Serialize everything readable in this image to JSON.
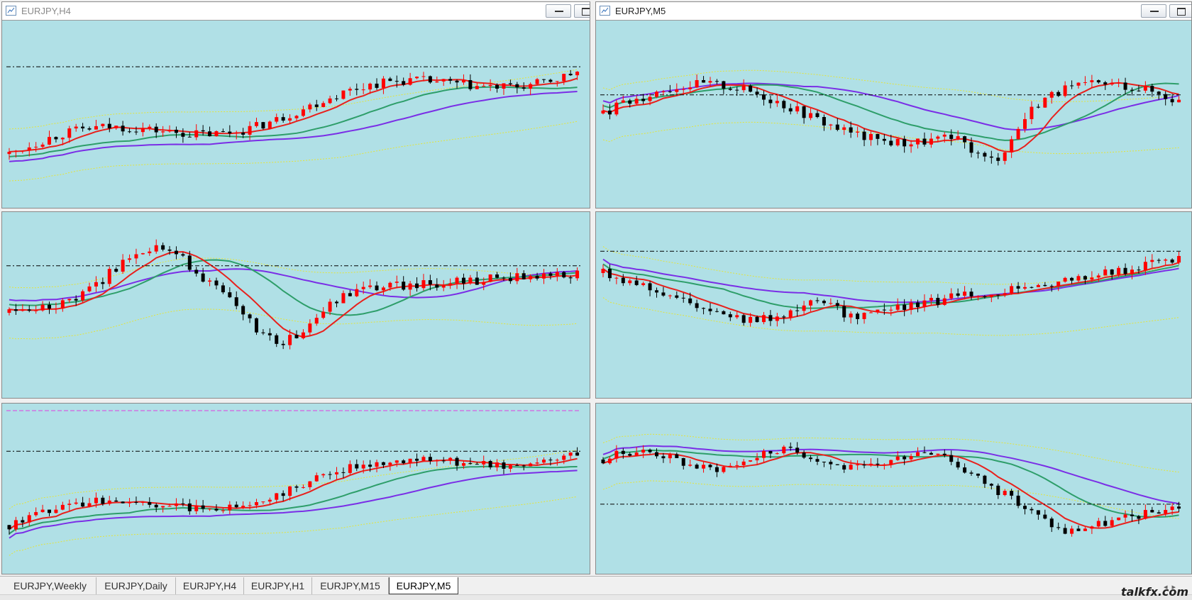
{
  "windows": [
    {
      "title": "EURJPY,H4",
      "active": false
    },
    {
      "title": "EURJPY,M5",
      "active": true
    }
  ],
  "tabs": [
    {
      "label": "EURJPY,Weekly",
      "active": false
    },
    {
      "label": "EURJPY,Daily",
      "active": false
    },
    {
      "label": "EURJPY,H4",
      "active": false
    },
    {
      "label": "EURJPY,H1",
      "active": false
    },
    {
      "label": "EURJPY,M15",
      "active": false
    },
    {
      "label": "EURJPY,M5",
      "active": true
    }
  ],
  "watermark": "talkfx.com",
  "colors": {
    "chart_background": "#b0e0e6",
    "bull_candle": "#ff0000",
    "bear_candle": "#000000",
    "ma_fast": "#e8201c",
    "ma_mid": "#2e9e6a",
    "ma_slow": "#7a2ee6",
    "band": "#e4e43a",
    "price_line": "#000000",
    "extra_line": "#e040e0"
  },
  "chart_data": [
    {
      "type": "candlestick",
      "panel": "top-left",
      "trend": "up",
      "note": "H4 chart with moving averages and envelope bands"
    },
    {
      "type": "candlestick",
      "panel": "top-right",
      "trend": "range",
      "note": "M5 chart"
    },
    {
      "type": "candlestick",
      "panel": "middle-left",
      "trend": "peak-drop-recover"
    },
    {
      "type": "candlestick",
      "panel": "middle-right",
      "trend": "drop-then-rise"
    },
    {
      "type": "candlestick",
      "panel": "bottom-left",
      "trend": "up"
    },
    {
      "type": "candlestick",
      "panel": "bottom-right",
      "trend": "range-then-drop"
    }
  ]
}
